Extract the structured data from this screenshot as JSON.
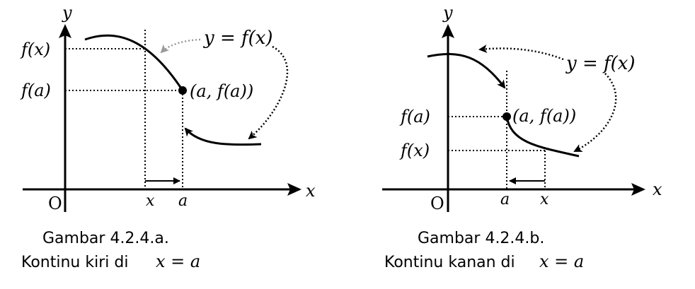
{
  "colors": {
    "ink": "#000000",
    "label_arrow": "#9a9a9a",
    "background": "#ffffff"
  },
  "figure_a": {
    "axis_x": "x",
    "axis_y": "y",
    "origin": "O",
    "ytick_fx": "f(x)",
    "ytick_fa": "f(a)",
    "xtick_x": "x",
    "xtick_a": "a",
    "curve_label": "y = f(x)",
    "point_label": "(a, f(a))",
    "caption_title": "Gambar 4.2.4.a.",
    "caption_text": "Kontinu kiri di",
    "caption_math": "x = a"
  },
  "figure_b": {
    "axis_x": "x",
    "axis_y": "y",
    "origin": "O",
    "ytick_fa": "f(a)",
    "ytick_fx": "f(x)",
    "xtick_a": "a",
    "xtick_x": "x",
    "curve_label": "y = f(x)",
    "point_label": "(a, f(a))",
    "caption_title": "Gambar 4.2.4.b.",
    "caption_text": "Kontinu kanan di",
    "caption_math": "x = a"
  }
}
